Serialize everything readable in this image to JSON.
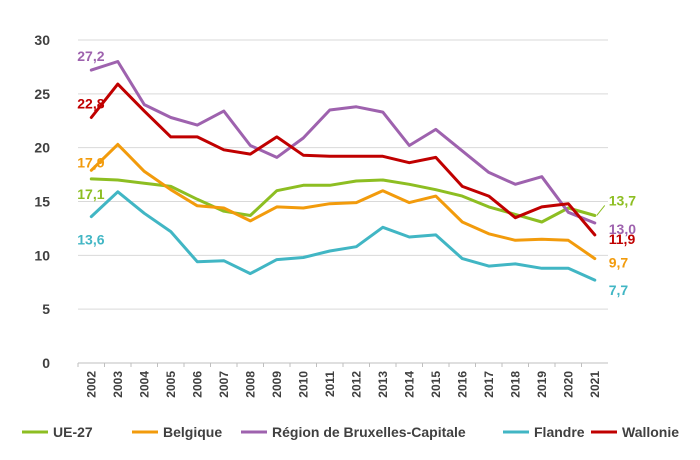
{
  "chart_data": {
    "type": "line",
    "title": "",
    "xlabel": "",
    "ylabel": "",
    "x": [
      "2002",
      "2003",
      "2004",
      "2005",
      "2006",
      "2007",
      "2008",
      "2009",
      "2010",
      "2011",
      "2012",
      "2013",
      "2014",
      "2015",
      "2016",
      "2017",
      "2018",
      "2019",
      "2020",
      "2021"
    ],
    "ylim": [
      0,
      30
    ],
    "yticks": [
      "0",
      "5",
      "10",
      "15",
      "20",
      "25",
      "30"
    ],
    "grid": true,
    "legend_position": "bottom",
    "series": [
      {
        "name": "UE-27",
        "color": "#8DBE22",
        "values": [
          17.1,
          17.0,
          16.7,
          16.4,
          15.2,
          14.1,
          13.7,
          16.0,
          16.5,
          16.5,
          16.9,
          17.0,
          16.6,
          16.1,
          15.5,
          14.5,
          13.8,
          13.1,
          14.4,
          13.7
        ],
        "labels": [
          {
            "index": 0,
            "text": "17,1"
          },
          {
            "index": 19,
            "text": "13,7"
          }
        ]
      },
      {
        "name": "Belgique",
        "color": "#F29B0C",
        "values": [
          17.9,
          20.3,
          17.8,
          16.1,
          14.6,
          14.4,
          13.2,
          14.5,
          14.4,
          14.8,
          14.9,
          16.0,
          14.9,
          15.5,
          13.1,
          12.0,
          11.4,
          11.5,
          11.4,
          9.7
        ],
        "labels": [
          {
            "index": 0,
            "text": "17,9"
          },
          {
            "index": 19,
            "text": "9,7"
          }
        ]
      },
      {
        "name": "Région de Bruxelles-Capitale",
        "color": "#9E62AE",
        "values": [
          27.2,
          28.0,
          24.0,
          22.8,
          22.1,
          23.4,
          20.2,
          19.1,
          20.9,
          23.5,
          23.8,
          23.3,
          20.2,
          21.7,
          19.7,
          17.7,
          16.6,
          17.3,
          14.0,
          13.0
        ],
        "labels": [
          {
            "index": 0,
            "text": "27,2"
          },
          {
            "index": 19,
            "text": "13,0"
          }
        ]
      },
      {
        "name": "Flandre",
        "color": "#41B6C4",
        "values": [
          13.6,
          15.9,
          13.9,
          12.2,
          9.4,
          9.5,
          8.3,
          9.6,
          9.8,
          10.4,
          10.8,
          12.6,
          11.7,
          11.9,
          9.7,
          9.0,
          9.2,
          8.8,
          8.8,
          7.7
        ],
        "labels": [
          {
            "index": 0,
            "text": "13,6"
          },
          {
            "index": 19,
            "text": "7,7"
          }
        ]
      },
      {
        "name": "Wallonie",
        "color": "#C00000",
        "values": [
          22.8,
          25.9,
          23.4,
          21.0,
          21.0,
          19.8,
          19.4,
          21.0,
          19.3,
          19.2,
          19.2,
          19.2,
          18.6,
          19.1,
          16.4,
          15.5,
          13.5,
          14.5,
          14.8,
          11.9
        ],
        "labels": [
          {
            "index": 0,
            "text": "22,8"
          },
          {
            "index": 19,
            "text": "11,9"
          }
        ]
      }
    ]
  }
}
